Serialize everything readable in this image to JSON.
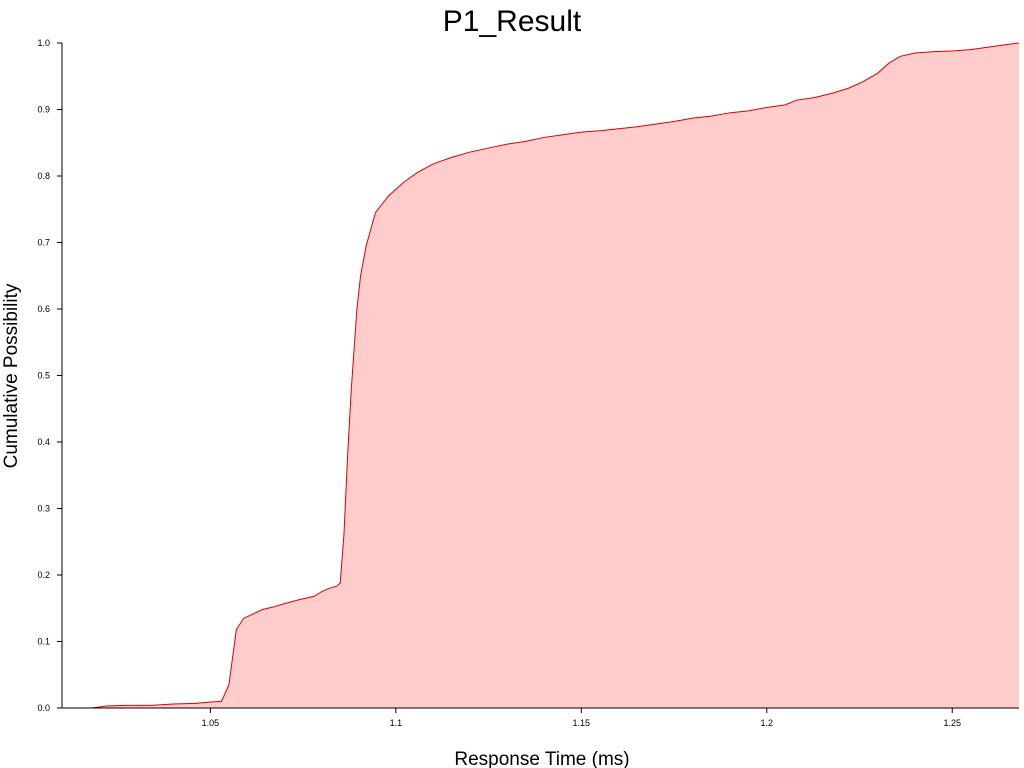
{
  "chart_data": {
    "type": "area",
    "title": "P1_Result",
    "xlabel": "Response Time (ms)",
    "ylabel": "Cumulative Possibility",
    "xlim": [
      1.01,
      1.268
    ],
    "ylim": [
      0,
      1.0
    ],
    "x_ticks": [
      "1.05",
      "1.1",
      "1.15",
      "1.2",
      "1.25"
    ],
    "y_ticks": [
      "0.0",
      "0.1",
      "0.2",
      "0.3",
      "0.4",
      "0.5",
      "0.6",
      "0.7",
      "0.8",
      "0.9",
      "1.0"
    ],
    "grid": false,
    "colors": {
      "fill": "#ffcccc",
      "line": "#dd0000"
    },
    "series": [
      {
        "x": [
          1.01,
          1.018,
          1.022,
          1.027,
          1.034,
          1.04,
          1.046,
          1.05,
          1.053,
          1.055,
          1.057,
          1.059,
          1.061,
          1.064,
          1.067,
          1.07,
          1.074,
          1.078,
          1.08,
          1.082,
          1.084,
          1.085,
          1.086,
          1.087,
          1.088,
          1.0895,
          1.0905,
          1.092,
          1.0945,
          1.098,
          1.102,
          1.106,
          1.11,
          1.115,
          1.12,
          1.125,
          1.13,
          1.135,
          1.14,
          1.145,
          1.15,
          1.155,
          1.16,
          1.165,
          1.17,
          1.175,
          1.18,
          1.185,
          1.19,
          1.195,
          1.2,
          1.205,
          1.208,
          1.213,
          1.218,
          1.222,
          1.226,
          1.23,
          1.233,
          1.236,
          1.24,
          1.245,
          1.25,
          1.255,
          1.26,
          1.265,
          1.268
        ],
        "y": [
          0.0,
          0.0,
          0.003,
          0.004,
          0.004,
          0.006,
          0.007,
          0.009,
          0.01,
          0.035,
          0.118,
          0.135,
          0.14,
          0.148,
          0.152,
          0.157,
          0.163,
          0.168,
          0.175,
          0.18,
          0.183,
          0.188,
          0.26,
          0.38,
          0.48,
          0.6,
          0.65,
          0.695,
          0.745,
          0.77,
          0.79,
          0.806,
          0.818,
          0.828,
          0.836,
          0.842,
          0.848,
          0.852,
          0.858,
          0.862,
          0.866,
          0.868,
          0.871,
          0.874,
          0.878,
          0.882,
          0.887,
          0.89,
          0.895,
          0.898,
          0.903,
          0.907,
          0.914,
          0.918,
          0.925,
          0.932,
          0.942,
          0.955,
          0.97,
          0.98,
          0.985,
          0.987,
          0.988,
          0.99,
          0.994,
          0.998,
          1.0
        ]
      }
    ]
  }
}
